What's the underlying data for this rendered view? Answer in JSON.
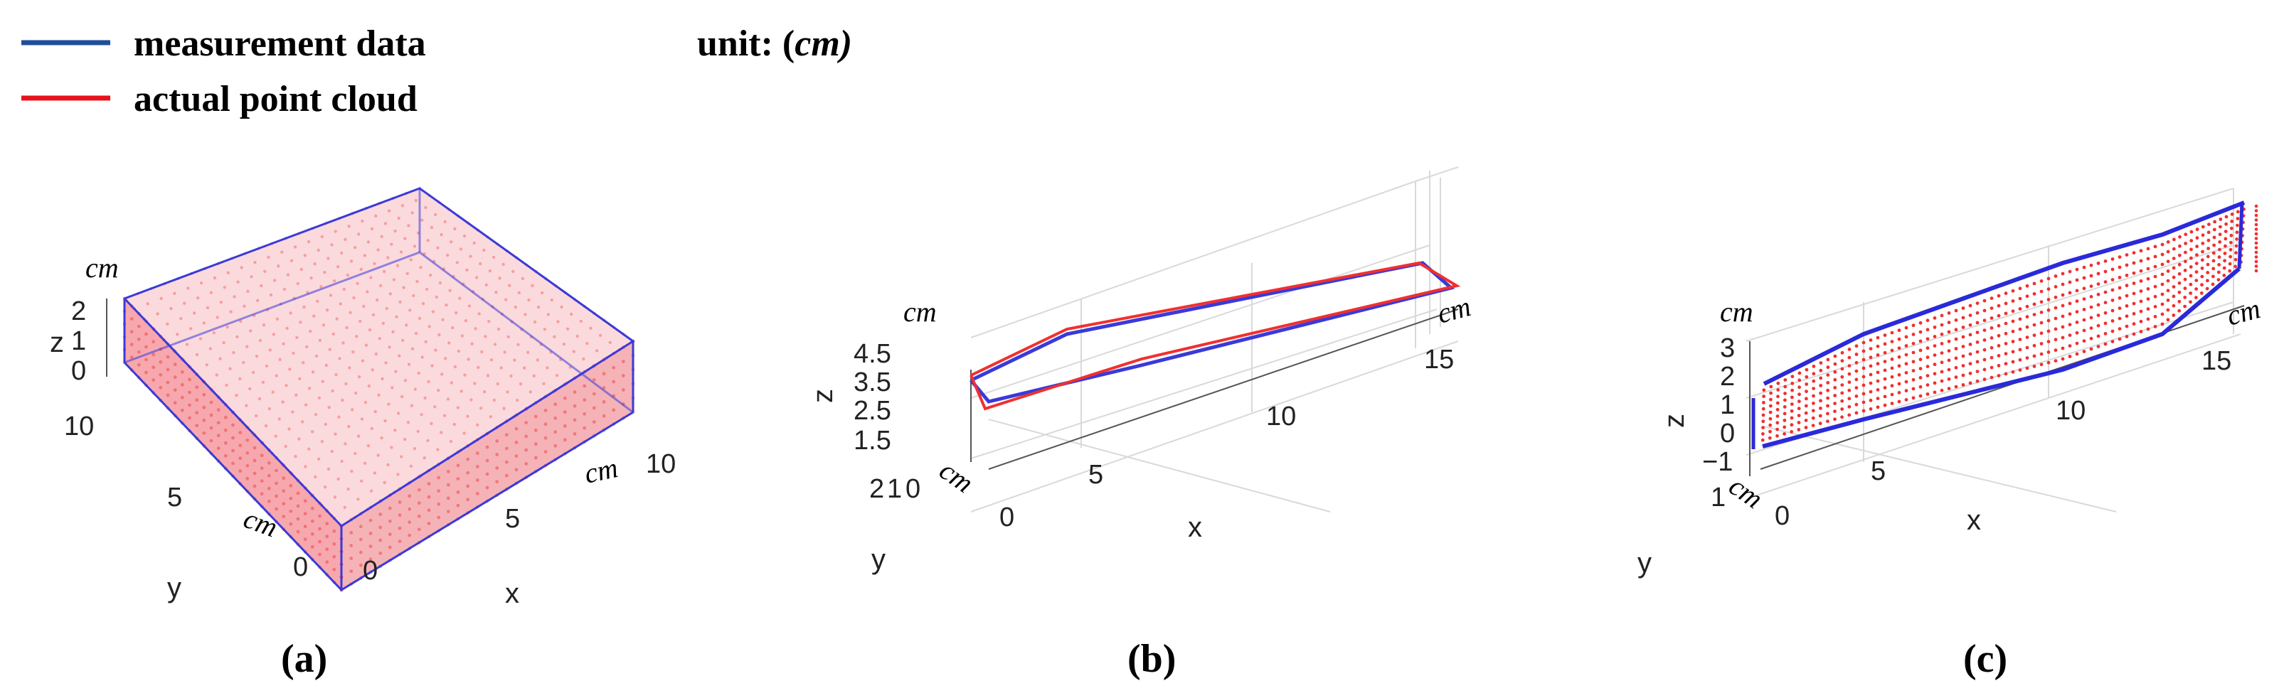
{
  "legend": {
    "items": [
      {
        "label": "measurement data",
        "color": "#1f4e9c"
      },
      {
        "label": "actual point cloud",
        "color": "#e8121b"
      }
    ],
    "unit_prefix": "unit: (",
    "unit": "cm",
    "unit_suffix": ")"
  },
  "colors": {
    "measurement": "#2a2ad8",
    "actual": "#f0302f",
    "fill_a": "#f7a8ae"
  },
  "chart_data": [
    {
      "type": "scatter",
      "panel": "(a)",
      "description_3d": true,
      "x": {
        "label": "x",
        "unit": "cm",
        "ticks": [
          "0",
          "5",
          "10"
        ],
        "range": [
          0,
          10
        ]
      },
      "y": {
        "label": "y",
        "unit": "cm",
        "ticks": [
          "0",
          "5",
          "10"
        ],
        "range": [
          0,
          10
        ]
      },
      "z": {
        "label": "z",
        "unit": "cm",
        "ticks": [
          "0",
          "1",
          "2"
        ],
        "range": [
          0,
          2.5
        ]
      },
      "series": [
        {
          "name": "measurement data",
          "box": {
            "x": [
              0,
              10
            ],
            "y": [
              0,
              10
            ],
            "z": [
              0,
              2.5
            ]
          }
        },
        {
          "name": "actual point cloud",
          "box": {
            "x": [
              0,
              10
            ],
            "y": [
              0,
              10
            ],
            "z": [
              0,
              2.5
            ]
          }
        }
      ]
    },
    {
      "type": "line",
      "panel": "(b)",
      "x": {
        "label": "x",
        "unit": "cm",
        "ticks": [
          "0",
          "5",
          "10",
          "15"
        ],
        "range": [
          0,
          17
        ]
      },
      "y": {
        "label": "y",
        "unit": "cm",
        "ticks": [
          "0",
          "1",
          "2"
        ],
        "range": [
          0,
          2
        ]
      },
      "z": {
        "label": "z",
        "unit": "cm",
        "ticks": [
          "1.5",
          "2.5",
          "3.5",
          "4.5"
        ],
        "range": [
          1.5,
          4.5
        ]
      },
      "series": [
        {
          "name": "measurement data",
          "points": [
            [
              0,
              0,
              3.6
            ],
            [
              5,
              0,
              4.4
            ],
            [
              16.5,
              0,
              4.6
            ],
            [
              17,
              1,
              4.3
            ],
            [
              5,
              1,
              3.6
            ],
            [
              0,
              1,
              3.4
            ],
            [
              0,
              0,
              3.6
            ]
          ]
        },
        {
          "name": "actual point cloud",
          "points": [
            [
              0,
              0,
              3.7
            ],
            [
              5,
              0,
              4.5
            ],
            [
              16.5,
              0,
              4.6
            ],
            [
              17,
              1,
              4.2
            ],
            [
              5,
              1,
              3.7
            ],
            [
              0,
              1,
              3.2
            ],
            [
              0,
              0,
              3.7
            ]
          ]
        }
      ]
    },
    {
      "type": "line",
      "panel": "(c)",
      "x": {
        "label": "x",
        "unit": "cm",
        "ticks": [
          "0",
          "5",
          "10",
          "15"
        ],
        "range": [
          0,
          17
        ]
      },
      "y": {
        "label": "y",
        "unit": "cm",
        "ticks": [
          "0",
          "1"
        ],
        "range": [
          0,
          1
        ]
      },
      "z": {
        "label": "z",
        "unit": "cm",
        "ticks": [
          "−1",
          "0",
          "1",
          "2",
          "3"
        ],
        "range": [
          -1,
          3
        ]
      },
      "series": [
        {
          "name": "measurement data",
          "upper_z": [
            1.7,
            2.5,
            3.0,
            3.3,
            3.6,
            4.2
          ],
          "lower_z": [
            -0.5,
            0.2,
            0.6,
            1.0,
            1.5,
            2.3
          ],
          "x": [
            0,
            3.4,
            6.8,
            10.2,
            13.6,
            17
          ]
        },
        {
          "name": "actual point cloud",
          "layers": 9
        }
      ]
    }
  ],
  "panels": {
    "a": {
      "label": "(a)",
      "cm": "cm",
      "z_name": "z",
      "y_name": "y",
      "x_name": "x",
      "z_ticks": [
        "2",
        "1",
        "0"
      ],
      "y_ticks": [
        "10",
        "5",
        "0"
      ],
      "x_ticks": [
        "0",
        "5",
        "10"
      ]
    },
    "b": {
      "label": "(b)",
      "cm": "cm",
      "z_name": "z",
      "y_name": "y",
      "x_name": "x",
      "z_ticks": [
        "4.5",
        "3.5",
        "2.5",
        "1.5"
      ],
      "y_ticks": [
        "2",
        "1",
        "0"
      ],
      "x_ticks": [
        "0",
        "5",
        "10",
        "15"
      ]
    },
    "c": {
      "label": "(c)",
      "cm": "cm",
      "z_name": "z",
      "y_name": "y",
      "x_name": "x",
      "z_ticks": [
        "3",
        "2",
        "1",
        "0",
        "−1"
      ],
      "y_ticks": [
        "1",
        "0"
      ],
      "x_ticks": [
        "0",
        "5",
        "10",
        "15"
      ]
    }
  }
}
